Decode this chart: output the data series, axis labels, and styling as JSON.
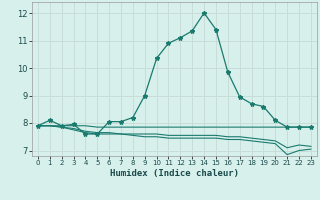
{
  "xlabel": "Humidex (Indice chaleur)",
  "bg_color": "#d8f0ec",
  "grid_color": "#c8dcd8",
  "line_color": "#1a7a6e",
  "xlim": [
    -0.5,
    23.5
  ],
  "ylim": [
    6.8,
    12.4
  ],
  "xticks": [
    0,
    1,
    2,
    3,
    4,
    5,
    6,
    7,
    8,
    9,
    10,
    11,
    12,
    13,
    14,
    15,
    16,
    17,
    18,
    19,
    20,
    21,
    22,
    23
  ],
  "yticks": [
    7,
    8,
    9,
    10,
    11,
    12
  ],
  "series": [
    {
      "x": [
        0,
        1,
        2,
        3,
        4,
        5,
        6,
        7,
        8,
        9,
        10,
        11,
        12,
        13,
        14,
        15,
        16,
        17,
        18,
        19,
        20,
        21,
        22,
        23
      ],
      "y": [
        7.9,
        8.1,
        7.9,
        7.95,
        7.6,
        7.6,
        8.05,
        8.05,
        8.2,
        9.0,
        10.35,
        10.9,
        11.1,
        11.35,
        12.0,
        11.4,
        9.85,
        8.95,
        8.7,
        8.6,
        8.1,
        7.85,
        7.85,
        7.85
      ],
      "marker": true
    },
    {
      "x": [
        0,
        1,
        2,
        3,
        4,
        5,
        6,
        7,
        8,
        9,
        10,
        11,
        12,
        13,
        14,
        15,
        16,
        17,
        18,
        19,
        20,
        21,
        22,
        23
      ],
      "y": [
        7.9,
        7.9,
        7.9,
        7.9,
        7.9,
        7.85,
        7.85,
        7.85,
        7.85,
        7.85,
        7.85,
        7.85,
        7.85,
        7.85,
        7.85,
        7.85,
        7.85,
        7.85,
        7.85,
        7.85,
        7.85,
        7.85,
        7.85,
        7.85
      ],
      "marker": false
    },
    {
      "x": [
        0,
        1,
        2,
        3,
        4,
        5,
        6,
        7,
        8,
        9,
        10,
        11,
        12,
        13,
        14,
        15,
        16,
        17,
        18,
        19,
        20,
        21,
        22,
        23
      ],
      "y": [
        7.9,
        7.9,
        7.85,
        7.75,
        7.65,
        7.6,
        7.6,
        7.6,
        7.55,
        7.5,
        7.5,
        7.45,
        7.45,
        7.45,
        7.45,
        7.45,
        7.4,
        7.4,
        7.35,
        7.3,
        7.25,
        6.85,
        7.0,
        7.05
      ],
      "marker": false
    },
    {
      "x": [
        0,
        1,
        2,
        3,
        4,
        5,
        6,
        7,
        8,
        9,
        10,
        11,
        12,
        13,
        14,
        15,
        16,
        17,
        18,
        19,
        20,
        21,
        22,
        23
      ],
      "y": [
        7.9,
        7.9,
        7.85,
        7.8,
        7.7,
        7.65,
        7.65,
        7.6,
        7.6,
        7.6,
        7.6,
        7.55,
        7.55,
        7.55,
        7.55,
        7.55,
        7.5,
        7.5,
        7.45,
        7.4,
        7.35,
        7.1,
        7.2,
        7.15
      ],
      "marker": false
    }
  ]
}
